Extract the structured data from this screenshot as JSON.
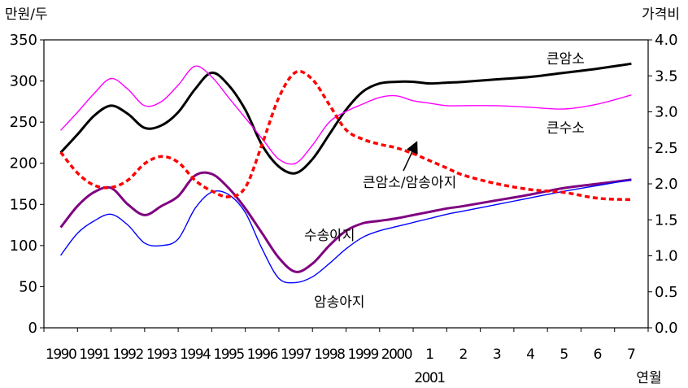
{
  "chart_data": {
    "type": "line",
    "y_unit_label": "만원/두",
    "y2_unit_label": "가격비",
    "x_unit_label": "연월",
    "x_sub_label": "2001",
    "ylim": [
      0,
      350
    ],
    "y_ticks": [
      "0",
      "50",
      "100",
      "150",
      "200",
      "250",
      "300",
      "350"
    ],
    "y2lim": [
      0.0,
      4.0
    ],
    "y2_ticks": [
      "0.0",
      "0.5",
      "1.0",
      "1.5",
      "2.0",
      "2.5",
      "3.0",
      "3.5",
      "4.0"
    ],
    "categories": [
      "1990",
      "1991",
      "1992",
      "1993",
      "1994",
      "1995",
      "1996",
      "1997",
      "1998",
      "1999",
      "2000",
      "1",
      "2",
      "3",
      "4",
      "5",
      "6",
      "7"
    ],
    "grid": false,
    "legend": "none (series labeled inline)",
    "series": [
      {
        "name": "큰암소",
        "axis": "left",
        "color": "#000000",
        "style": "solid",
        "x": [
          0,
          0.5,
          1,
          1.5,
          2,
          2.5,
          3,
          3.5,
          4,
          4.5,
          5,
          5.5,
          6,
          6.5,
          7,
          7.5,
          8,
          8.5,
          9,
          9.5,
          10,
          10.5,
          11,
          11.5,
          12,
          13,
          14,
          15,
          16,
          17
        ],
        "values": [
          213,
          235,
          258,
          270,
          260,
          243,
          246,
          262,
          290,
          310,
          295,
          265,
          222,
          196,
          188,
          205,
          235,
          265,
          287,
          297,
          299,
          299,
          297,
          298,
          299,
          302,
          305,
          310,
          315,
          321
        ]
      },
      {
        "name": "큰수소",
        "axis": "left",
        "color": "#ff00ff",
        "style": "solid",
        "x": [
          0,
          0.5,
          1,
          1.5,
          2,
          2.5,
          3,
          3.5,
          4,
          4.5,
          5,
          5.5,
          6,
          6.5,
          7,
          7.5,
          8,
          8.5,
          9,
          9.5,
          10,
          10.5,
          11,
          11.5,
          12,
          13,
          14,
          15,
          16,
          17
        ],
        "values": [
          240,
          262,
          285,
          303,
          290,
          270,
          275,
          295,
          318,
          305,
          280,
          255,
          230,
          205,
          200,
          222,
          250,
          263,
          272,
          280,
          282,
          276,
          273,
          270,
          270,
          270,
          268,
          266,
          272,
          283
        ]
      },
      {
        "name": "수송아지",
        "axis": "left",
        "color": "#800080",
        "style": "solid",
        "x": [
          0,
          0.5,
          1,
          1.5,
          2,
          2.5,
          3,
          3.5,
          4,
          4.5,
          5,
          5.5,
          6,
          6.5,
          7,
          7.5,
          8,
          8.5,
          9,
          9.5,
          10,
          10.5,
          11,
          11.5,
          12,
          13,
          14,
          15,
          16,
          17
        ],
        "values": [
          122,
          148,
          165,
          170,
          150,
          137,
          148,
          160,
          185,
          187,
          170,
          145,
          115,
          85,
          68,
          78,
          100,
          118,
          127,
          130,
          133,
          137,
          141,
          145,
          148,
          155,
          162,
          170,
          175,
          180
        ]
      },
      {
        "name": "암송아지",
        "axis": "left",
        "color": "#0000ff",
        "style": "solid",
        "x": [
          0,
          0.5,
          1,
          1.5,
          2,
          2.5,
          3,
          3.5,
          4,
          4.5,
          5,
          5.5,
          6,
          6.5,
          7,
          7.5,
          8,
          8.5,
          9,
          9.5,
          10,
          10.5,
          11,
          11.5,
          12,
          13,
          14,
          15,
          16,
          17
        ],
        "values": [
          88,
          115,
          130,
          138,
          125,
          103,
          100,
          108,
          145,
          165,
          162,
          140,
          96,
          60,
          55,
          62,
          78,
          96,
          110,
          118,
          123,
          128,
          133,
          138,
          142,
          150,
          158,
          166,
          173,
          180
        ]
      },
      {
        "name": "큰암소/암송아지",
        "axis": "right",
        "color": "#ff0000",
        "style": "dashed",
        "x": [
          0,
          0.5,
          1,
          1.5,
          2,
          2.5,
          3,
          3.5,
          4,
          4.5,
          5,
          5.5,
          6,
          6.5,
          7,
          7.5,
          8,
          8.5,
          9,
          9.5,
          10,
          10.5,
          11,
          11.5,
          12,
          13,
          14,
          15,
          16,
          17
        ],
        "values": [
          2.44,
          2.15,
          1.98,
          1.95,
          2.05,
          2.28,
          2.38,
          2.3,
          2.05,
          1.9,
          1.82,
          1.95,
          2.55,
          3.2,
          3.55,
          3.45,
          3.1,
          2.75,
          2.62,
          2.55,
          2.5,
          2.42,
          2.32,
          2.22,
          2.12,
          2.0,
          1.92,
          1.88,
          1.8,
          1.78
        ]
      }
    ],
    "annotations": [
      {
        "text": "큰암소",
        "series": "큰암소"
      },
      {
        "text": "큰수소",
        "series": "큰수소"
      },
      {
        "text": "큰암소/암송아지",
        "series": "큰암소/암송아지",
        "arrow": true
      },
      {
        "text": "수송아지",
        "series": "수송아지"
      },
      {
        "text": "암송아지",
        "series": "암송아지"
      }
    ]
  }
}
